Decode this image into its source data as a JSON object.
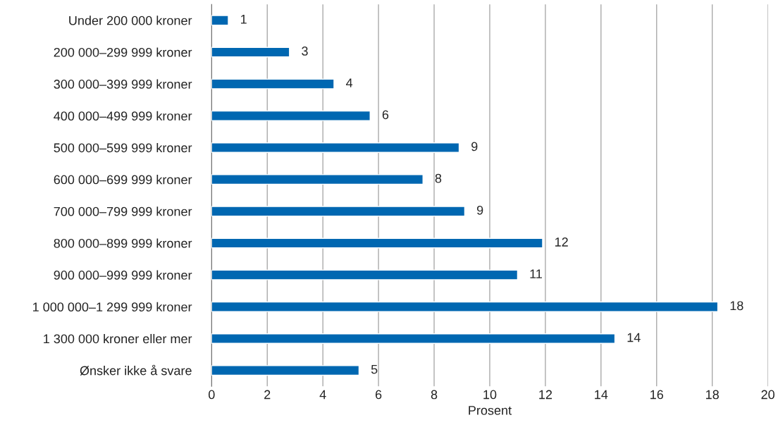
{
  "chart_data": {
    "type": "bar",
    "orientation": "horizontal",
    "xlabel": "Prosent",
    "categories": [
      "Under 200 000 kroner",
      "200 000–299 999 kroner",
      "300 000–399 999 kroner",
      "400 000–499 999 kroner",
      "500 000–599 999 kroner",
      "600 000–699 999 kroner",
      "700 000–799 999 kroner",
      "800 000–899 999 kroner",
      "900 000–999 999 kroner",
      "1 000 000–1 299 999 kroner",
      "1 300 000 kroner eller mer",
      "Ønsker ikke å svare"
    ],
    "values": [
      0.6,
      2.8,
      4.4,
      5.7,
      8.9,
      7.6,
      9.1,
      11.9,
      11.0,
      18.2,
      14.5,
      5.3
    ],
    "value_labels": [
      "1",
      "3",
      "4",
      "6",
      "9",
      "8",
      "9",
      "12",
      "11",
      "18",
      "14",
      "5"
    ],
    "color": "#0067b1",
    "xlim": [
      0,
      20
    ],
    "xticks": [
      0,
      2,
      4,
      6,
      8,
      10,
      12,
      14,
      16,
      18,
      20
    ],
    "grid": "x",
    "legend": false
  }
}
